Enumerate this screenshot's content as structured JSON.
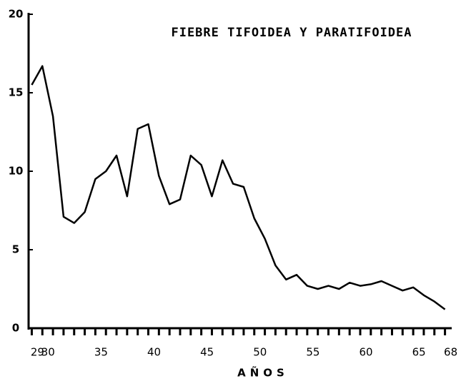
{
  "chart_data": {
    "type": "line",
    "title": "FIEBRE TIFOIDEA Y PARATIFOIDEA",
    "x_label": "AÑOS",
    "x": [
      29,
      30,
      31,
      32,
      33,
      34,
      35,
      36,
      37,
      38,
      39,
      40,
      41,
      42,
      43,
      44,
      45,
      46,
      47,
      48,
      49,
      50,
      51,
      52,
      53,
      54,
      55,
      56,
      57,
      58,
      59,
      60,
      61,
      62,
      63,
      64,
      65,
      66,
      67,
      68
    ],
    "series": [
      {
        "name": null,
        "color": "#000000",
        "values": [
          15.5,
          16.7,
          13.5,
          7.1,
          6.7,
          7.4,
          9.5,
          10.0,
          11.0,
          8.4,
          12.7,
          13.0,
          9.7,
          7.9,
          8.2,
          11.0,
          10.4,
          8.4,
          10.7,
          9.2,
          9.0,
          7.0,
          5.7,
          4.0,
          3.1,
          3.4,
          2.7,
          2.5,
          2.7,
          2.5,
          2.9,
          2.7,
          2.8,
          3.0,
          2.7,
          2.4,
          2.6,
          2.1,
          1.7,
          1.2
        ]
      }
    ],
    "xlim": [
      28.7,
      68.5
    ],
    "xticks": [
      29,
      30,
      35,
      40,
      45,
      50,
      55,
      60,
      65,
      68
    ],
    "ylim": [
      0,
      20
    ],
    "yticks": [
      0,
      5,
      10,
      15,
      20
    ],
    "grid": false
  }
}
